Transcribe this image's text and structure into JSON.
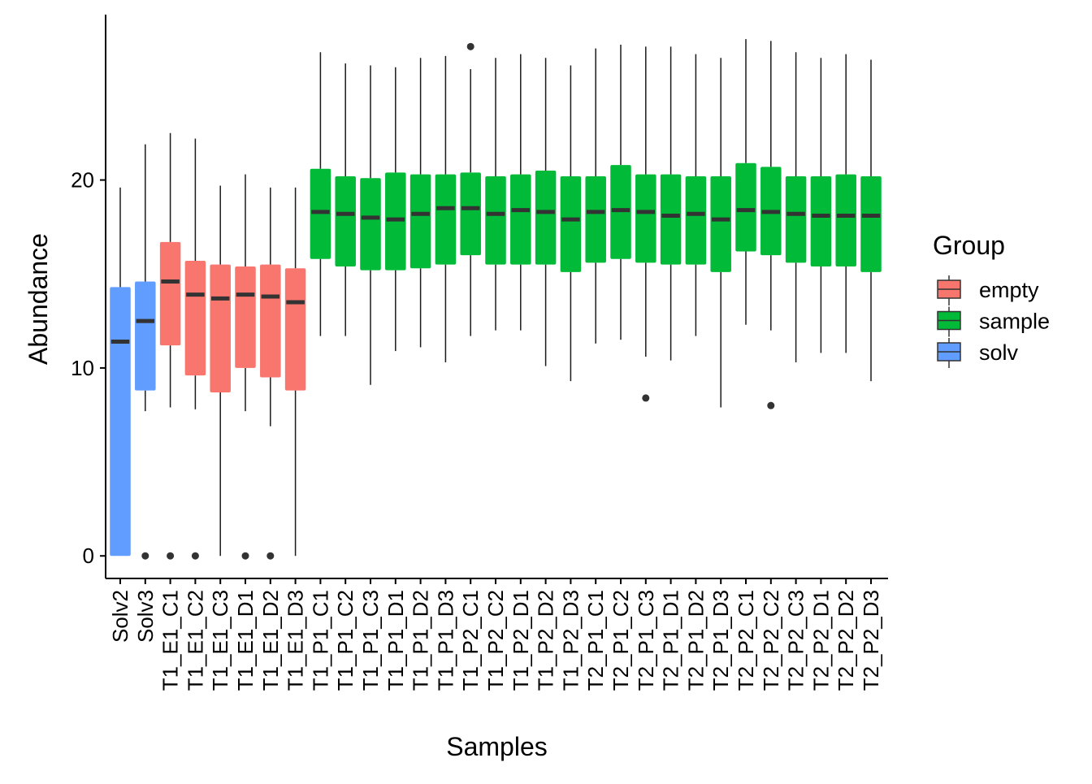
{
  "chart_data": {
    "type": "boxplot",
    "xlabel": "Samples",
    "ylabel": "Abundance",
    "ylim": [
      -1.2,
      28.8
    ],
    "yticks": [
      0,
      10,
      20
    ],
    "legend": {
      "title": "Group",
      "position": "right",
      "entries": [
        {
          "name": "empty",
          "color": "#F8766D"
        },
        {
          "name": "sample",
          "color": "#00BA38"
        },
        {
          "name": "solv",
          "color": "#619CFF"
        }
      ]
    },
    "samples": [
      {
        "name": "Solv2",
        "group": "solv",
        "whisker_low": 0,
        "q1": 0,
        "median": 11.4,
        "q3": 14.3,
        "whisker_high": 19.6,
        "outliers": []
      },
      {
        "name": "Solv3",
        "group": "solv",
        "whisker_low": 7.7,
        "q1": 8.8,
        "median": 12.5,
        "q3": 14.6,
        "whisker_high": 21.9,
        "outliers": [
          0
        ]
      },
      {
        "name": "T1_E1_C1",
        "group": "empty",
        "whisker_low": 7.9,
        "q1": 11.2,
        "median": 14.6,
        "q3": 16.7,
        "whisker_high": 22.5,
        "outliers": [
          0
        ]
      },
      {
        "name": "T1_E1_C2",
        "group": "empty",
        "whisker_low": 7.8,
        "q1": 9.6,
        "median": 13.9,
        "q3": 15.7,
        "whisker_high": 22.2,
        "outliers": [
          0
        ]
      },
      {
        "name": "T1_E1_C3",
        "group": "empty",
        "whisker_low": 0,
        "q1": 8.7,
        "median": 13.7,
        "q3": 15.5,
        "whisker_high": 19.7,
        "outliers": []
      },
      {
        "name": "T1_E1_D1",
        "group": "empty",
        "whisker_low": 7.7,
        "q1": 10.0,
        "median": 13.9,
        "q3": 15.4,
        "whisker_high": 20.3,
        "outliers": [
          0
        ]
      },
      {
        "name": "T1_E1_D2",
        "group": "empty",
        "whisker_low": 6.9,
        "q1": 9.5,
        "median": 13.8,
        "q3": 15.5,
        "whisker_high": 19.6,
        "outliers": [
          0
        ]
      },
      {
        "name": "T1_E1_D3",
        "group": "empty",
        "whisker_low": 0,
        "q1": 8.8,
        "median": 13.5,
        "q3": 15.3,
        "whisker_high": 19.6,
        "outliers": []
      },
      {
        "name": "T1_P1_C1",
        "group": "sample",
        "whisker_low": 11.7,
        "q1": 15.8,
        "median": 18.3,
        "q3": 20.6,
        "whisker_high": 26.8,
        "outliers": []
      },
      {
        "name": "T1_P1_C2",
        "group": "sample",
        "whisker_low": 11.7,
        "q1": 15.4,
        "median": 18.2,
        "q3": 20.2,
        "whisker_high": 26.2,
        "outliers": []
      },
      {
        "name": "T1_P1_C3",
        "group": "sample",
        "whisker_low": 9.1,
        "q1": 15.2,
        "median": 18.0,
        "q3": 20.1,
        "whisker_high": 26.1,
        "outliers": []
      },
      {
        "name": "T1_P1_D1",
        "group": "sample",
        "whisker_low": 10.9,
        "q1": 15.2,
        "median": 17.9,
        "q3": 20.4,
        "whisker_high": 26.0,
        "outliers": []
      },
      {
        "name": "T1_P1_D2",
        "group": "sample",
        "whisker_low": 11.1,
        "q1": 15.3,
        "median": 18.2,
        "q3": 20.3,
        "whisker_high": 26.5,
        "outliers": []
      },
      {
        "name": "T1_P1_D3",
        "group": "sample",
        "whisker_low": 10.3,
        "q1": 15.5,
        "median": 18.5,
        "q3": 20.3,
        "whisker_high": 26.6,
        "outliers": []
      },
      {
        "name": "T1_P2_C1",
        "group": "sample",
        "whisker_low": 11.7,
        "q1": 16.0,
        "median": 18.5,
        "q3": 20.4,
        "whisker_high": 25.9,
        "outliers": [
          27.1
        ]
      },
      {
        "name": "T1_P2_C2",
        "group": "sample",
        "whisker_low": 12.0,
        "q1": 15.5,
        "median": 18.2,
        "q3": 20.2,
        "whisker_high": 26.5,
        "outliers": []
      },
      {
        "name": "T1_P2_D1",
        "group": "sample",
        "whisker_low": 12.0,
        "q1": 15.5,
        "median": 18.4,
        "q3": 20.3,
        "whisker_high": 26.7,
        "outliers": []
      },
      {
        "name": "T1_P2_D2",
        "group": "sample",
        "whisker_low": 10.1,
        "q1": 15.5,
        "median": 18.3,
        "q3": 20.5,
        "whisker_high": 26.5,
        "outliers": []
      },
      {
        "name": "T1_P2_D3",
        "group": "sample",
        "whisker_low": 9.3,
        "q1": 15.1,
        "median": 17.9,
        "q3": 20.2,
        "whisker_high": 26.1,
        "outliers": []
      },
      {
        "name": "T2_P1_C1",
        "group": "sample",
        "whisker_low": 11.3,
        "q1": 15.6,
        "median": 18.3,
        "q3": 20.2,
        "whisker_high": 27.0,
        "outliers": []
      },
      {
        "name": "T2_P1_C2",
        "group": "sample",
        "whisker_low": 11.5,
        "q1": 15.8,
        "median": 18.4,
        "q3": 20.8,
        "whisker_high": 27.2,
        "outliers": []
      },
      {
        "name": "T2_P1_C3",
        "group": "sample",
        "whisker_low": 10.6,
        "q1": 15.6,
        "median": 18.3,
        "q3": 20.3,
        "whisker_high": 27.1,
        "outliers": [
          8.4
        ]
      },
      {
        "name": "T2_P1_D1",
        "group": "sample",
        "whisker_low": 10.4,
        "q1": 15.5,
        "median": 18.1,
        "q3": 20.3,
        "whisker_high": 27.1,
        "outliers": []
      },
      {
        "name": "T2_P1_D2",
        "group": "sample",
        "whisker_low": 11.7,
        "q1": 15.5,
        "median": 18.2,
        "q3": 20.2,
        "whisker_high": 26.7,
        "outliers": []
      },
      {
        "name": "T2_P1_D3",
        "group": "sample",
        "whisker_low": 7.9,
        "q1": 15.1,
        "median": 17.9,
        "q3": 20.2,
        "whisker_high": 26.5,
        "outliers": []
      },
      {
        "name": "T2_P2_C1",
        "group": "sample",
        "whisker_low": 12.3,
        "q1": 16.2,
        "median": 18.4,
        "q3": 20.9,
        "whisker_high": 27.5,
        "outliers": []
      },
      {
        "name": "T2_P2_C2",
        "group": "sample",
        "whisker_low": 12.0,
        "q1": 16.0,
        "median": 18.3,
        "q3": 20.7,
        "whisker_high": 27.4,
        "outliers": [
          8.0
        ]
      },
      {
        "name": "T2_P2_C3",
        "group": "sample",
        "whisker_low": 10.3,
        "q1": 15.6,
        "median": 18.2,
        "q3": 20.2,
        "whisker_high": 26.8,
        "outliers": []
      },
      {
        "name": "T2_P2_D1",
        "group": "sample",
        "whisker_low": 10.8,
        "q1": 15.4,
        "median": 18.1,
        "q3": 20.2,
        "whisker_high": 26.5,
        "outliers": []
      },
      {
        "name": "T2_P2_D2",
        "group": "sample",
        "whisker_low": 10.8,
        "q1": 15.4,
        "median": 18.1,
        "q3": 20.3,
        "whisker_high": 26.7,
        "outliers": []
      },
      {
        "name": "T2_P2_D3",
        "group": "sample",
        "whisker_low": 9.3,
        "q1": 15.1,
        "median": 18.1,
        "q3": 20.2,
        "whisker_high": 26.4,
        "outliers": []
      }
    ]
  }
}
